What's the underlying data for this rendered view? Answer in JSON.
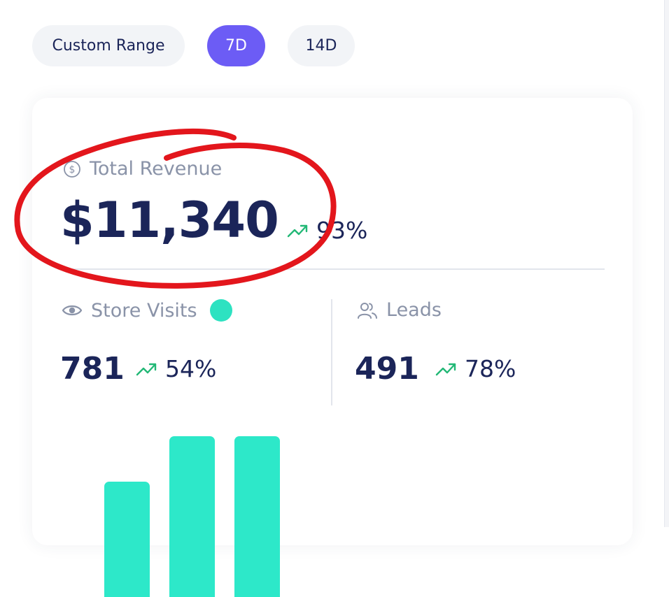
{
  "range_selector": {
    "options": [
      "Custom Range",
      "7D",
      "14D"
    ],
    "selected": "7D"
  },
  "total_revenue": {
    "icon": "dollar-circle-icon",
    "label": "Total Revenue",
    "value": "$11,340",
    "change": "93%",
    "trend_icon": "trending-up-icon"
  },
  "store_visits": {
    "icon": "eye-icon",
    "label": "Store Visits",
    "value": "781",
    "change": "54%",
    "status_color": "#2de2c1"
  },
  "leads": {
    "icon": "users-icon",
    "label": "Leads",
    "value": "491",
    "change": "78%"
  },
  "chart_data": {
    "type": "bar",
    "categories": [
      "",
      "",
      ""
    ],
    "values": [
      1,
      2,
      2
    ],
    "ylim": [
      0,
      2
    ]
  },
  "colors": {
    "accent": "#6c5cf5",
    "bar": "#2de8c9",
    "trend_up": "#22b876",
    "value_text": "#1b2559",
    "label_text": "#8a93a8",
    "annotation": "#e3161c"
  }
}
